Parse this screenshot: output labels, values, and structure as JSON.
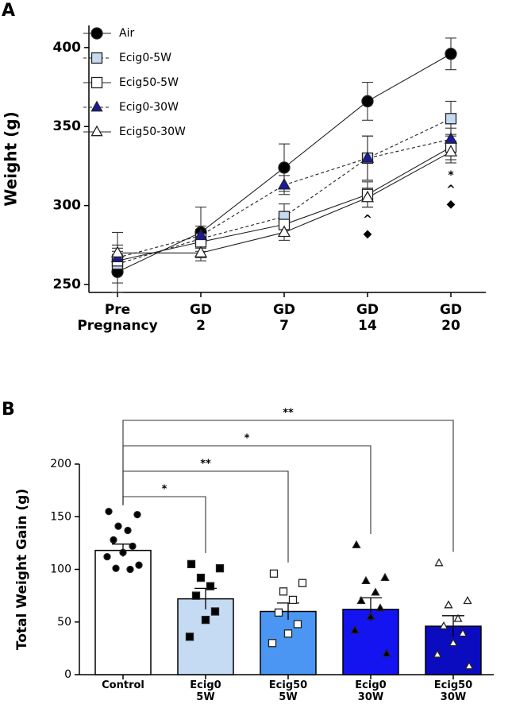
{
  "chart_data": [
    {
      "type": "line",
      "panel": "A",
      "y_label": "Weight (g)",
      "categories": [
        "Pre Pregnancy",
        "GD 2",
        "GD 7",
        "GD 14",
        "GD 20"
      ],
      "ylim": [
        245,
        414
      ],
      "yticks": [
        250,
        300,
        350,
        400
      ],
      "legend": "upper left",
      "series": [
        {
          "name": "Air",
          "color": "#000000",
          "marker": "circle",
          "dash": false,
          "values": [
            258,
            283,
            324,
            366,
            396
          ],
          "errors": [
            13,
            16,
            15,
            12,
            10
          ]
        },
        {
          "name": "Ecig0-5W",
          "color": "#c5d9f1",
          "marker": "square",
          "dash": true,
          "values": [
            263,
            279,
            293,
            330,
            355
          ],
          "errors": [
            6,
            6,
            8,
            14,
            11
          ]
        },
        {
          "name": "Ecig50-5W",
          "color": "#ffffff",
          "marker": "square",
          "dash": false,
          "values": [
            265,
            277,
            288,
            307,
            337
          ],
          "errors": [
            8,
            6,
            7,
            8,
            8
          ]
        },
        {
          "name": "Ecig0-30W",
          "color": "#1a1aa0",
          "marker": "triangle",
          "dash": true,
          "values": [
            267,
            281,
            313,
            330,
            342
          ],
          "errors": [
            16,
            6,
            6,
            14,
            7
          ]
        },
        {
          "name": "Ecig50-30W",
          "color": "#ffffff",
          "marker": "triangle",
          "dash": false,
          "values": [
            270,
            270,
            283,
            305,
            334
          ],
          "errors": [
            5,
            5,
            5,
            6,
            7
          ]
        }
      ],
      "annotations": [
        {
          "category": "GD 14",
          "texts": [
            "^",
            "◆"
          ]
        },
        {
          "category": "GD 20",
          "texts": [
            "*",
            "^",
            "◆"
          ]
        }
      ]
    },
    {
      "type": "bar",
      "panel": "B",
      "y_label": "Total Weight Gain (g)",
      "categories": [
        "Control",
        "Ecig0 5W",
        "Ecig50 5W",
        "Ecig0 30W",
        "Ecig50 30W"
      ],
      "values": [
        118,
        72,
        60,
        62,
        46
      ],
      "errors": [
        6,
        10,
        8,
        11,
        10
      ],
      "colors": [
        "#ffffff",
        "#c5daf3",
        "#4a96f2",
        "#1414f0",
        "#0b0bc0"
      ],
      "point_markers": [
        "circle",
        "square",
        "square",
        "triangle",
        "triangle"
      ],
      "point_fills": [
        "#000000",
        "#000000",
        "#ffffff",
        "#000000",
        "#ffffff"
      ],
      "points": [
        [
          155,
          152,
          141,
          137,
          128,
          122,
          116,
          112,
          104,
          101,
          100
        ],
        [
          105,
          101,
          92,
          84,
          75,
          60,
          52,
          36
        ],
        [
          96,
          87,
          79,
          71,
          59,
          48,
          39,
          30
        ],
        [
          123,
          92,
          89,
          78,
          70,
          63,
          55,
          42,
          20
        ],
        [
          106,
          70,
          66,
          53,
          46,
          39,
          30,
          19,
          8
        ]
      ],
      "ylim": [
        0,
        200
      ],
      "yticks": [
        0,
        50,
        100,
        150,
        200
      ],
      "comparisons": [
        {
          "groups": [
            "Control",
            "Ecig0 5W"
          ],
          "label": "*"
        },
        {
          "groups": [
            "Control",
            "Ecig50 5W"
          ],
          "label": "**"
        },
        {
          "groups": [
            "Control",
            "Ecig0 30W"
          ],
          "label": "*"
        },
        {
          "groups": [
            "Control",
            "Ecig50 30W"
          ],
          "label": "**"
        }
      ]
    }
  ]
}
